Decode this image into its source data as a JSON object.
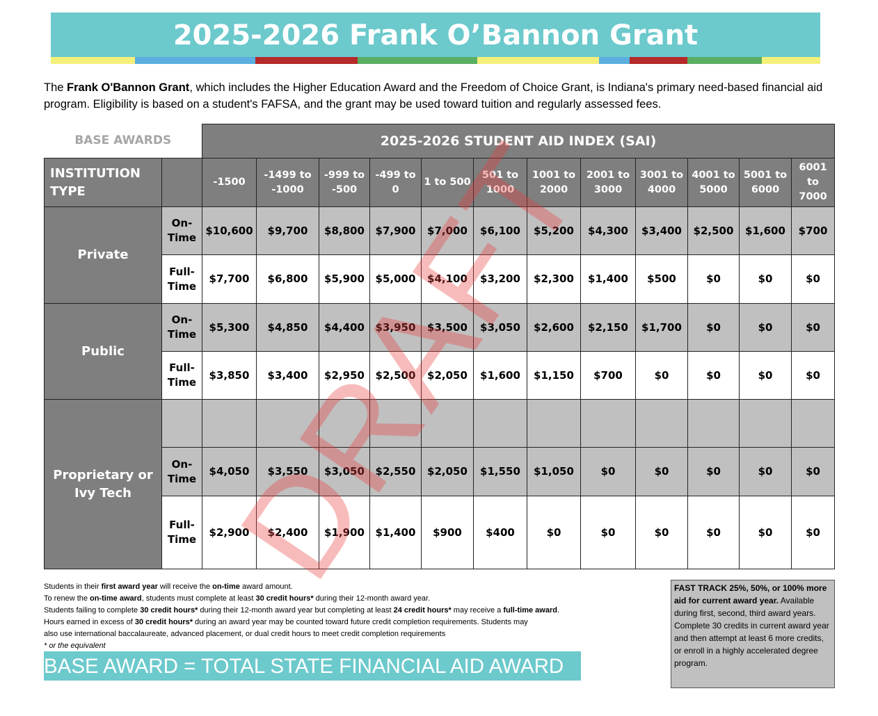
{
  "header": {
    "title": "2025-2026 Frank O’Bannon Grant"
  },
  "intro": [
    "The ",
    "Frank O'Bannon Grant",
    ", which includes the Higher Education Award and the Freedom of Choice Grant, is Indiana's primary need-based financial aid program. Eligibility is  based on a student's FAFSA, and the grant may be used toward tuition and regularly assessed fees."
  ],
  "table": {
    "base_awards": "BASE AWARDS",
    "sai_header": "2025-2026 STUDENT AID INDEX (SAI)",
    "institution_type_header": "INSTITUTION TYPE",
    "columns": [
      "-1500",
      "-1499 to -1000",
      "-999 to -500",
      "-499 to 0",
      "1 to 500",
      "501 to 1000",
      "1001 to 2000",
      "2001 to 3000",
      "3001 to 4000",
      "4001 to 5000",
      "5001 to 6000",
      "6001 to 7000"
    ],
    "groups": [
      {
        "name": "Private",
        "rows": [
          {
            "label": "On-Time",
            "values": [
              "$10,600",
              "$9,700",
              "$8,800",
              "$7,900",
              "$7,000",
              "$6,100",
              "$5,200",
              "$4,300",
              "$3,400",
              "$2,500",
              "$1,600",
              "$700"
            ]
          },
          {
            "label": "Full-Time",
            "values": [
              "$7,700",
              "$6,800",
              "$5,900",
              "$5,000",
              "$4,100",
              "$3,200",
              "$2,300",
              "$1,400",
              "$500",
              "$0",
              "$0",
              "$0"
            ]
          }
        ]
      },
      {
        "name": "Public",
        "rows": [
          {
            "label": "On-Time",
            "values": [
              "$5,300",
              "$4,850",
              "$4,400",
              "$3,950",
              "$3,500",
              "$3,050",
              "$2,600",
              "$2,150",
              "$1,700",
              "$0",
              "$0",
              "$0"
            ]
          },
          {
            "label": "Full-Time",
            "values": [
              "$3,850",
              "$3,400",
              "$2,950",
              "$2,500",
              "$2,050",
              "$1,600",
              "$1,150",
              "$700",
              "$0",
              "$0",
              "$0",
              "$0"
            ]
          }
        ]
      },
      {
        "name": "Proprietary or Ivy Tech",
        "rows": [
          {
            "label": "On-Time",
            "values": [
              "$4,050",
              "$3,550",
              "$3,050",
              "$2,550",
              "$2,050",
              "$1,550",
              "$1,050",
              "$0",
              "$0",
              "$0",
              "$0",
              "$0"
            ]
          },
          {
            "label": "Full-Time",
            "values": [
              "$2,900",
              "$2,400",
              "$1,900",
              "$1,400",
              "$900",
              "$400",
              "$0",
              "$0",
              "$0",
              "$0",
              "$0",
              "$0"
            ]
          }
        ]
      }
    ]
  },
  "watermark": "DRAFT",
  "footnotes": [
    [
      "Students in their ",
      "first award year",
      " will receive the ",
      "on-time",
      " award amount."
    ],
    [
      "To renew the ",
      "on-time award",
      ", students must complete at least ",
      "30 credit hours*",
      " during their 12-month award year."
    ],
    [
      "Students failing to complete ",
      "30 credit hours*",
      " during their 12-month award year but completing at least ",
      "24 credit hours*",
      " may receive a ",
      "full-time award",
      "."
    ],
    [
      "Hours earned in excess of ",
      "30 credit hours*",
      " during an award year may be counted toward future credit completion requirements. Students may"
    ],
    [
      "also use international baccalaureate, advanced  placement, or dual credit hours to meet credit completion requirements"
    ]
  ],
  "footnote_asterisk": "* or the equivalent",
  "banner": "BASE AWARD = TOTAL STATE FINANCIAL AID AWARD",
  "fast_track": {
    "heading": "FAST TRACK 25%, 50%, or 100% more aid for current award year.",
    "body": "Available during first, second, third award years.  Complete 30 credits in current  award year and then attempt at  least 6 more credits, or enroll in a highly accelerated degree  program."
  }
}
